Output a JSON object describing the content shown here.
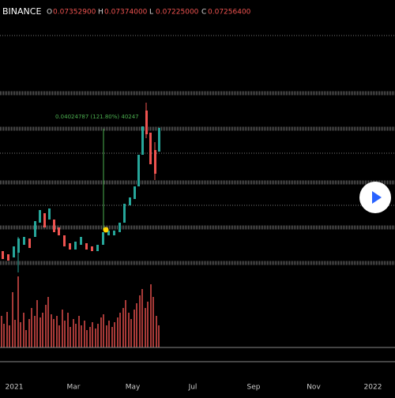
{
  "header": {
    "exchange": "BINANCE",
    "ohlc": [
      {
        "key": "O",
        "value": "0.07352900"
      },
      {
        "key": "H",
        "value": "0.07374000"
      },
      {
        "key": "L",
        "value": "0.07225000"
      },
      {
        "key": "C",
        "value": "0.07256400"
      }
    ]
  },
  "measure": {
    "label": "0.04024787 (121.80%) 40247"
  },
  "time_axis": {
    "labels": [
      "2021",
      "Mar",
      "May",
      "Jul",
      "Sep",
      "Nov",
      "2022"
    ]
  }
}
